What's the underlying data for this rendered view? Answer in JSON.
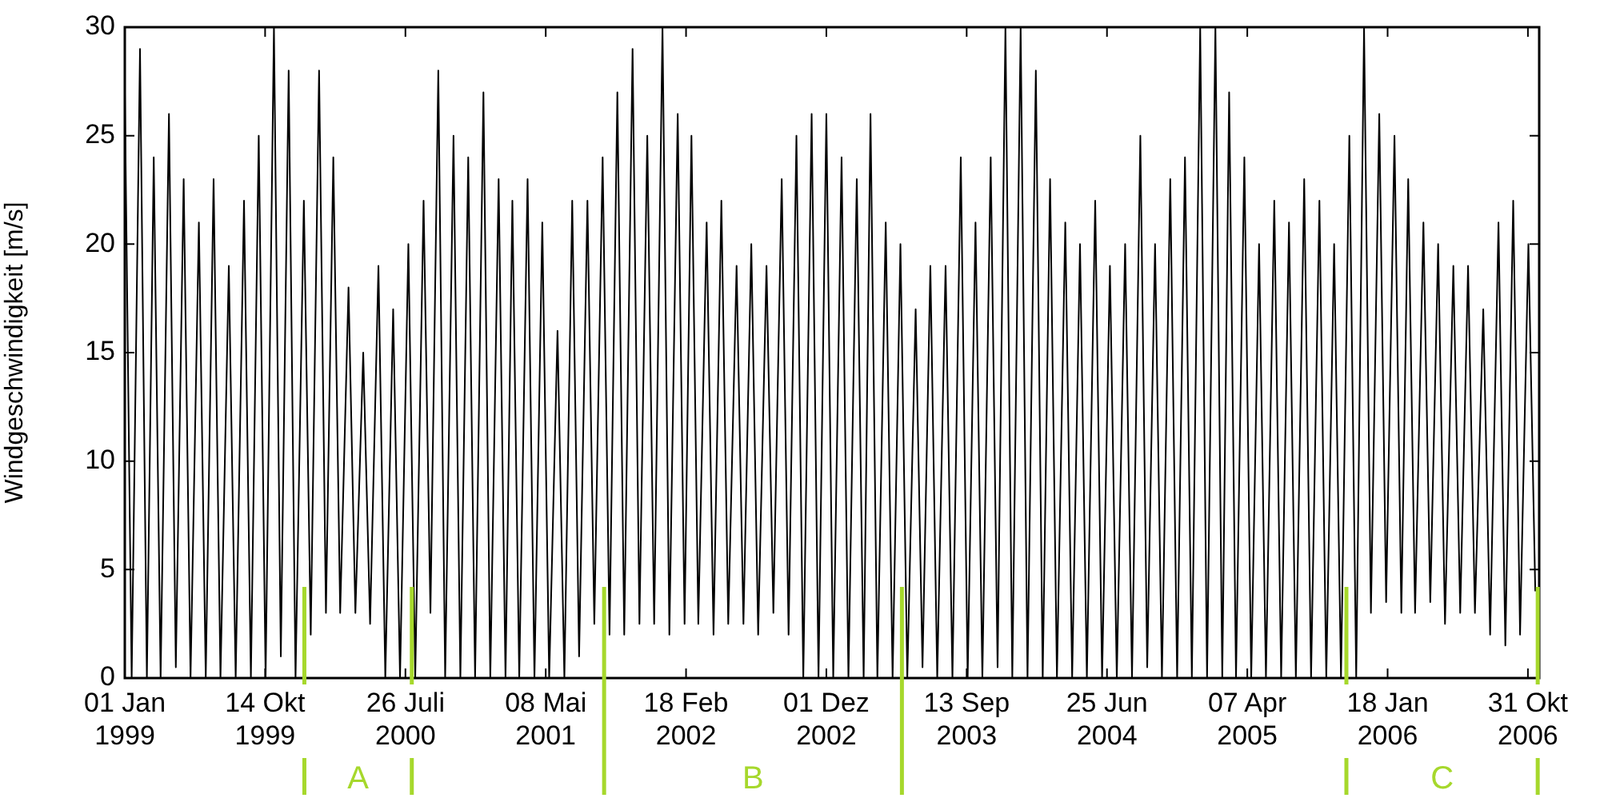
{
  "chart_data": {
    "type": "line",
    "ylabel": "Windgeschwindigkeit [m/s]",
    "xlim": [
      "1999-01-01",
      "2006-11-23"
    ],
    "xticks": [
      {
        "value": "1999-01-01",
        "label": "01 Jan 1999"
      },
      {
        "value": "1999-10-14",
        "label": "14 Okt 1999"
      },
      {
        "value": "2000-07-26",
        "label": "26 Juli 2000"
      },
      {
        "value": "2001-05-08",
        "label": "08 Mai 2001"
      },
      {
        "value": "2002-02-18",
        "label": "18 Feb 2002"
      },
      {
        "value": "2002-12-01",
        "label": "01 Dez 2002"
      },
      {
        "value": "2003-09-13",
        "label": "13 Sep 2003"
      },
      {
        "value": "2004-06-25",
        "label": "25 Jun 2004"
      },
      {
        "value": "2005-04-07",
        "label": "07 Apr 2005"
      },
      {
        "value": "2006-01-18",
        "label": "18 Jan 2006"
      },
      {
        "value": "2006-10-31",
        "label": "31 Okt 2006"
      }
    ],
    "ylim": [
      0,
      30
    ],
    "yticks": [
      0,
      5,
      10,
      15,
      20,
      25,
      30
    ],
    "grid": false,
    "legend": false,
    "marker": "none",
    "line_style": "solid",
    "ref_lines": [
      {
        "axis": "x",
        "value": "2000-01-02",
        "color": "#a6d82c"
      },
      {
        "axis": "x",
        "value": "2000-08-08",
        "color": "#a6d82c"
      },
      {
        "axis": "x",
        "value": "2001-09-04",
        "color": "#a6d82c"
      },
      {
        "axis": "x",
        "value": "2003-05-04",
        "color": "#a6d82c"
      },
      {
        "axis": "x",
        "value": "2005-10-26",
        "color": "#a6d82c"
      },
      {
        "axis": "x",
        "value": "2006-11-20",
        "color": "#a6d82c"
      }
    ],
    "annotations": [
      "A",
      "B",
      "C"
    ],
    "series": [
      {
        "color": "#000000",
        "x": [
          "1999-01-01",
          "1999-01-15",
          "1999-02-01",
          "1999-02-15",
          "1999-03-01",
          "1999-03-15",
          "1999-04-01",
          "1999-04-15",
          "1999-05-01",
          "1999-05-15",
          "1999-06-01",
          "1999-06-15",
          "1999-07-01",
          "1999-07-15",
          "1999-08-01",
          "1999-08-15",
          "1999-09-01",
          "1999-09-15",
          "1999-10-01",
          "1999-10-15",
          "1999-11-01",
          "1999-11-15",
          "1999-12-01",
          "1999-12-15",
          "2000-01-01",
          "2000-01-15",
          "2000-02-01",
          "2000-02-15",
          "2000-03-01",
          "2000-03-15",
          "2000-04-01",
          "2000-04-15",
          "2000-05-01",
          "2000-05-15",
          "2000-06-01",
          "2000-06-15",
          "2000-07-01",
          "2000-07-15",
          "2000-08-01",
          "2000-08-15",
          "2000-09-01",
          "2000-09-15",
          "2000-10-01",
          "2000-10-15",
          "2000-11-01",
          "2000-11-15",
          "2000-12-01",
          "2000-12-15",
          "2001-01-01",
          "2001-01-15",
          "2001-02-01",
          "2001-02-15",
          "2001-03-01",
          "2001-03-15",
          "2001-04-01",
          "2001-04-15",
          "2001-05-01",
          "2001-05-15",
          "2001-06-01",
          "2001-06-15",
          "2001-07-01",
          "2001-07-15",
          "2001-08-01",
          "2001-08-15",
          "2001-09-01",
          "2001-09-15",
          "2001-10-01",
          "2001-10-15",
          "2001-11-01",
          "2001-11-15",
          "2001-12-01",
          "2001-12-15",
          "2002-01-01",
          "2002-01-15",
          "2002-02-01",
          "2002-02-15",
          "2002-03-01",
          "2002-03-15",
          "2002-04-01",
          "2002-04-15",
          "2002-05-01",
          "2002-05-15",
          "2002-06-01",
          "2002-06-15",
          "2002-07-01",
          "2002-07-15",
          "2002-08-01",
          "2002-08-15",
          "2002-09-01",
          "2002-09-15",
          "2002-10-01",
          "2002-10-15",
          "2002-11-01",
          "2002-11-15",
          "2002-12-01",
          "2002-12-15",
          "2003-01-01",
          "2003-01-15",
          "2003-02-01",
          "2003-02-15",
          "2003-03-01",
          "2003-03-15",
          "2003-04-01",
          "2003-04-15",
          "2003-05-01",
          "2003-05-15",
          "2003-06-01",
          "2003-06-15",
          "2003-07-01",
          "2003-07-15",
          "2003-08-01",
          "2003-08-15",
          "2003-09-01",
          "2003-09-15",
          "2003-10-01",
          "2003-10-15",
          "2003-11-01",
          "2003-11-15",
          "2003-12-01",
          "2003-12-15",
          "2004-01-01",
          "2004-01-15",
          "2004-02-01",
          "2004-02-15",
          "2004-03-01",
          "2004-03-15",
          "2004-04-01",
          "2004-04-15",
          "2004-05-01",
          "2004-05-15",
          "2004-06-01",
          "2004-06-15",
          "2004-07-01",
          "2004-07-15",
          "2004-08-01",
          "2004-08-15",
          "2004-09-01",
          "2004-09-15",
          "2004-10-01",
          "2004-10-15",
          "2004-11-01",
          "2004-11-15",
          "2004-12-01",
          "2004-12-15",
          "2005-01-01",
          "2005-01-15",
          "2005-02-01",
          "2005-02-15",
          "2005-03-01",
          "2005-03-15",
          "2005-04-01",
          "2005-04-15",
          "2005-05-01",
          "2005-05-15",
          "2005-06-01",
          "2005-06-15",
          "2005-07-01",
          "2005-07-15",
          "2005-08-01",
          "2005-08-15",
          "2005-09-01",
          "2005-09-15",
          "2005-10-01",
          "2005-10-15",
          "2005-11-01",
          "2005-11-15",
          "2005-12-01",
          "2005-12-15",
          "2006-01-01",
          "2006-01-15",
          "2006-02-01",
          "2006-02-15",
          "2006-03-01",
          "2006-03-15",
          "2006-04-01",
          "2006-04-15",
          "2006-05-01",
          "2006-05-15",
          "2006-06-01",
          "2006-06-15",
          "2006-07-01",
          "2006-07-15",
          "2006-08-01",
          "2006-08-15",
          "2006-09-01",
          "2006-09-15",
          "2006-10-01",
          "2006-10-15",
          "2006-11-01",
          "2006-11-15"
        ],
        "values": [
          27,
          0,
          29,
          0,
          24,
          0,
          26,
          0.5,
          23,
          0,
          21,
          0,
          23,
          0,
          19,
          0,
          22,
          0,
          25,
          0,
          30,
          1,
          28,
          0,
          22,
          2,
          28,
          3,
          24,
          3,
          18,
          3,
          15,
          2.5,
          19,
          0,
          17,
          0,
          20,
          0,
          22,
          3,
          28,
          0,
          25,
          0,
          24,
          0,
          27,
          0,
          23,
          0,
          22,
          0,
          23,
          0,
          21,
          0,
          16,
          0,
          22,
          1,
          22,
          2.5,
          24,
          2,
          27,
          2,
          29,
          2.5,
          25,
          2.5,
          30,
          2,
          26,
          2.5,
          25,
          2.5,
          21,
          2,
          22,
          2.5,
          19,
          2.5,
          20,
          2,
          19,
          3,
          23,
          2,
          25,
          0,
          26,
          0,
          26,
          0,
          24,
          0,
          23,
          0,
          26,
          0,
          21,
          0,
          20,
          0,
          17,
          0.5,
          19,
          0,
          19,
          0,
          24,
          0,
          21,
          0,
          24,
          0.5,
          30,
          0,
          30,
          0,
          28,
          0,
          23,
          0,
          21,
          0,
          20,
          0,
          22,
          0,
          19,
          0,
          20,
          0,
          25,
          0.5,
          20,
          0,
          23,
          0,
          24,
          0,
          30,
          0,
          30,
          0,
          27,
          0,
          24,
          0,
          20,
          0,
          22,
          0,
          21,
          0,
          23,
          0,
          22,
          0,
          20,
          0,
          25,
          0,
          30,
          3,
          26,
          3.5,
          25,
          3,
          23,
          3,
          21,
          3.5,
          20,
          2.5,
          19,
          3,
          19,
          3,
          17,
          2,
          21,
          1.5,
          22,
          2,
          20,
          4
        ]
      }
    ]
  }
}
